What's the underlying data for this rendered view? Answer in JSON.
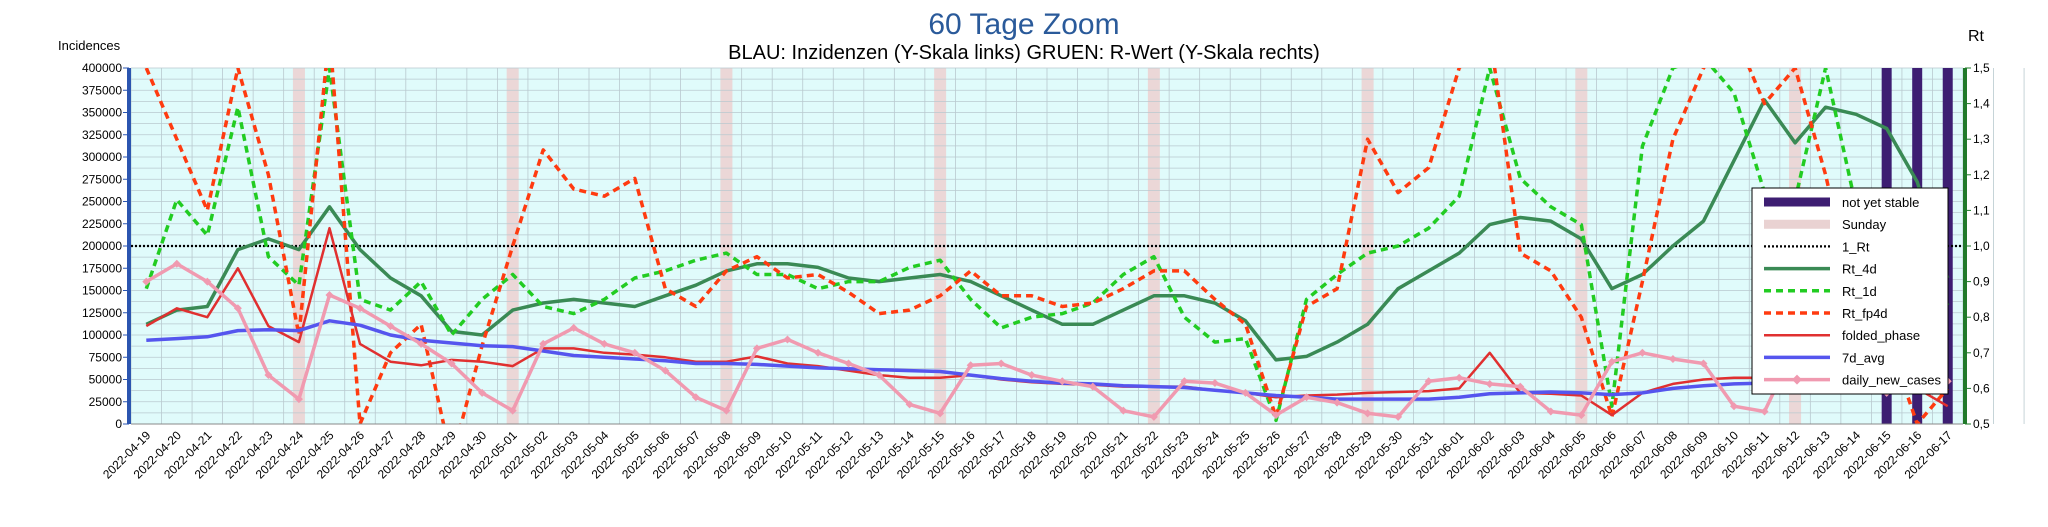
{
  "chart_data": {
    "type": "line",
    "title": "60 Tage Zoom",
    "subtitle": "BLAU: Inzidenzen (Y-Skala links)     GRUEN: R-Wert (Y-Skala rechts)",
    "ylabel_left": "Incidences",
    "ylabel_right": "Rt",
    "ylim_left": [
      0,
      400000
    ],
    "ylim_right": [
      0.5,
      1.5
    ],
    "left_ticks": [
      "0",
      "25000",
      "50000",
      "75000",
      "100000",
      "125000",
      "150000",
      "175000",
      "200000",
      "225000",
      "250000",
      "275000",
      "300000",
      "325000",
      "350000",
      "375000",
      "400000"
    ],
    "right_ticks": [
      "0,5",
      "0,6",
      "0,7",
      "0,8",
      "0,9",
      "1,0",
      "1,1",
      "1,2",
      "1,3",
      "1,4",
      "1,5"
    ],
    "x": [
      "2022-04-19",
      "2022-04-20",
      "2022-04-21",
      "2022-04-22",
      "2022-04-23",
      "2022-04-24",
      "2022-04-25",
      "2022-04-26",
      "2022-04-27",
      "2022-04-28",
      "2022-04-29",
      "2022-04-30",
      "2022-05-01",
      "2022-05-02",
      "2022-05-03",
      "2022-05-04",
      "2022-05-05",
      "2022-05-06",
      "2022-05-07",
      "2022-05-08",
      "2022-05-09",
      "2022-05-10",
      "2022-05-11",
      "2022-05-12",
      "2022-05-13",
      "2022-05-14",
      "2022-05-15",
      "2022-05-16",
      "2022-05-17",
      "2022-05-18",
      "2022-05-19",
      "2022-05-20",
      "2022-05-21",
      "2022-05-22",
      "2022-05-23",
      "2022-05-24",
      "2022-05-25",
      "2022-05-26",
      "2022-05-27",
      "2022-05-28",
      "2022-05-29",
      "2022-05-30",
      "2022-05-31",
      "2022-06-01",
      "2022-06-02",
      "2022-06-03",
      "2022-06-04",
      "2022-06-05",
      "2022-06-06",
      "2022-06-07",
      "2022-06-08",
      "2022-06-09",
      "2022-06-10",
      "2022-06-11",
      "2022-06-12",
      "2022-06-13",
      "2022-06-14",
      "2022-06-15",
      "2022-06-16",
      "2022-06-17"
    ],
    "sundays": [
      "2022-04-24",
      "2022-05-01",
      "2022-05-08",
      "2022-05-15",
      "2022-05-22",
      "2022-05-29",
      "2022-06-05",
      "2022-06-12"
    ],
    "not_yet_stable": [
      "2022-06-15",
      "2022-06-16",
      "2022-06-17"
    ],
    "one_rt": 1.0,
    "series": [
      {
        "name": "Rt_4d",
        "axis": "right",
        "color": "#3a8a55",
        "style": "solid",
        "width": 3.5,
        "values": [
          0.78,
          0.82,
          0.83,
          0.99,
          1.02,
          0.99,
          1.11,
          0.99,
          0.91,
          0.86,
          0.76,
          0.75,
          0.82,
          0.84,
          0.85,
          0.84,
          0.83,
          0.86,
          0.89,
          0.93,
          0.95,
          0.95,
          0.94,
          0.91,
          0.9,
          0.91,
          0.92,
          0.9,
          0.86,
          0.82,
          0.78,
          0.78,
          0.82,
          0.86,
          0.86,
          0.84,
          0.79,
          0.68,
          0.69,
          0.73,
          0.78,
          0.88,
          0.93,
          0.98,
          1.06,
          1.08,
          1.07,
          1.02,
          0.88,
          0.92,
          1.0,
          1.07,
          1.24,
          1.41,
          1.29,
          1.39,
          1.37,
          1.33,
          1.18,
          0.91
        ]
      },
      {
        "name": "Rt_1d",
        "axis": "right",
        "color": "#22cc22",
        "style": "dashed",
        "width": 3.5,
        "values": [
          0.88,
          1.13,
          1.03,
          1.39,
          0.97,
          0.89,
          1.5,
          0.85,
          0.82,
          0.9,
          0.75,
          0.85,
          0.92,
          0.83,
          0.81,
          0.85,
          0.91,
          0.93,
          0.96,
          0.98,
          0.92,
          0.92,
          0.88,
          0.9,
          0.9,
          0.94,
          0.96,
          0.85,
          0.77,
          0.8,
          0.81,
          0.84,
          0.92,
          0.97,
          0.8,
          0.73,
          0.74,
          0.51,
          0.85,
          0.92,
          0.98,
          1.0,
          1.05,
          1.14,
          1.5,
          1.19,
          1.11,
          1.06,
          0.55,
          1.28,
          1.5,
          1.53,
          1.43,
          1.15,
          1.13,
          1.5,
          1.11,
          1.06,
          0.69,
          0.84
        ]
      },
      {
        "name": "Rt_fp4d",
        "axis": "right",
        "color": "#ff3b10",
        "style": "dashed",
        "width": 3.5,
        "values": [
          1.5,
          1.3,
          1.1,
          1.5,
          1.2,
          0.75,
          1.6,
          0.5,
          0.7,
          0.78,
          0.4,
          0.72,
          1.0,
          1.27,
          1.16,
          1.14,
          1.19,
          0.88,
          0.83,
          0.93,
          0.97,
          0.91,
          0.92,
          0.87,
          0.81,
          0.82,
          0.86,
          0.93,
          0.86,
          0.86,
          0.83,
          0.84,
          0.88,
          0.93,
          0.93,
          0.85,
          0.78,
          0.52,
          0.83,
          0.88,
          1.3,
          1.15,
          1.22,
          1.5,
          1.6,
          0.98,
          0.93,
          0.8,
          0.52,
          0.9,
          1.3,
          1.5,
          1.6,
          1.4,
          1.5,
          1.2,
          0.82,
          0.75,
          0.5,
          0.6
        ]
      },
      {
        "name": "folded_phase",
        "axis": "left",
        "color": "#e03030",
        "style": "solid",
        "width": 2.5,
        "values": [
          110000,
          130000,
          120000,
          175000,
          110000,
          92000,
          220000,
          90000,
          70000,
          66000,
          72000,
          70000,
          65000,
          85000,
          85000,
          80000,
          78000,
          75000,
          70000,
          70000,
          76000,
          68000,
          65000,
          60000,
          55000,
          52000,
          52000,
          55000,
          50000,
          47000,
          45000,
          44000,
          42000,
          42000,
          42000,
          38000,
          35000,
          30000,
          32000,
          33000,
          35000,
          36000,
          37000,
          40000,
          80000,
          35000,
          34000,
          32000,
          10000,
          35000,
          45000,
          50000,
          52000,
          52000,
          50000,
          55000,
          143000,
          45000,
          40000,
          20000
        ]
      },
      {
        "name": "7d_avg",
        "axis": "left",
        "color": "#5555ee",
        "style": "solid",
        "width": 3.5,
        "values": [
          94000,
          96000,
          98000,
          105000,
          106000,
          105000,
          116000,
          111000,
          100000,
          94000,
          91000,
          88000,
          87000,
          82000,
          77000,
          75000,
          73000,
          71000,
          68000,
          68000,
          67000,
          65000,
          63000,
          62000,
          61000,
          60000,
          59000,
          55000,
          51000,
          48000,
          46000,
          45000,
          43000,
          42000,
          41000,
          38000,
          35000,
          32000,
          30000,
          28000,
          28000,
          28000,
          28000,
          30000,
          34000,
          35000,
          36000,
          35000,
          33000,
          35000,
          40000,
          43000,
          45000,
          46000,
          47000,
          48000,
          60000,
          62000,
          57000,
          54000
        ]
      },
      {
        "name": "daily_new_cases",
        "axis": "left",
        "color": "#f09ab0",
        "style": "solid",
        "width": 3.5,
        "marker": "diamond",
        "values": [
          160000,
          180000,
          160000,
          130000,
          55000,
          28000,
          145000,
          130000,
          110000,
          90000,
          68000,
          35000,
          15000,
          90000,
          108000,
          90000,
          80000,
          60000,
          30000,
          15000,
          85000,
          95000,
          80000,
          68000,
          55000,
          22000,
          12000,
          66000,
          68000,
          55000,
          48000,
          42000,
          15000,
          8000,
          48000,
          46000,
          35000,
          10000,
          30000,
          24000,
          12000,
          8000,
          48000,
          52000,
          45000,
          42000,
          14000,
          10000,
          70000,
          80000,
          73000,
          68000,
          20000,
          14000,
          86000,
          93000,
          85000,
          35000,
          50000,
          48000
        ]
      }
    ],
    "legend": {
      "placement": "right",
      "entries": [
        {
          "label": "not yet stable",
          "color": "#3d1e72",
          "kind": "thick"
        },
        {
          "label": "Sunday",
          "color": "#e9d2d2",
          "kind": "thick"
        },
        {
          "label": "1_Rt",
          "color": "#000000",
          "kind": "dotted"
        },
        {
          "label": "Rt_4d",
          "color": "#3a8a55",
          "kind": "solid"
        },
        {
          "label": "Rt_1d",
          "color": "#22cc22",
          "kind": "dashed"
        },
        {
          "label": "Rt_fp4d",
          "color": "#ff3b10",
          "kind": "dashed"
        },
        {
          "label": "folded_phase",
          "color": "#e03030",
          "kind": "thin"
        },
        {
          "label": "7d_avg",
          "color": "#5555ee",
          "kind": "solid"
        },
        {
          "label": "daily_new_cases",
          "color": "#f09ab0",
          "kind": "marker"
        }
      ]
    },
    "colors": {
      "plot_background": "#e0fbfb",
      "grid": "#b9c9cf",
      "left_axis": "#2b55b0",
      "right_axis": "#207a2a",
      "title": "#2a5a9a"
    },
    "grid": true
  }
}
